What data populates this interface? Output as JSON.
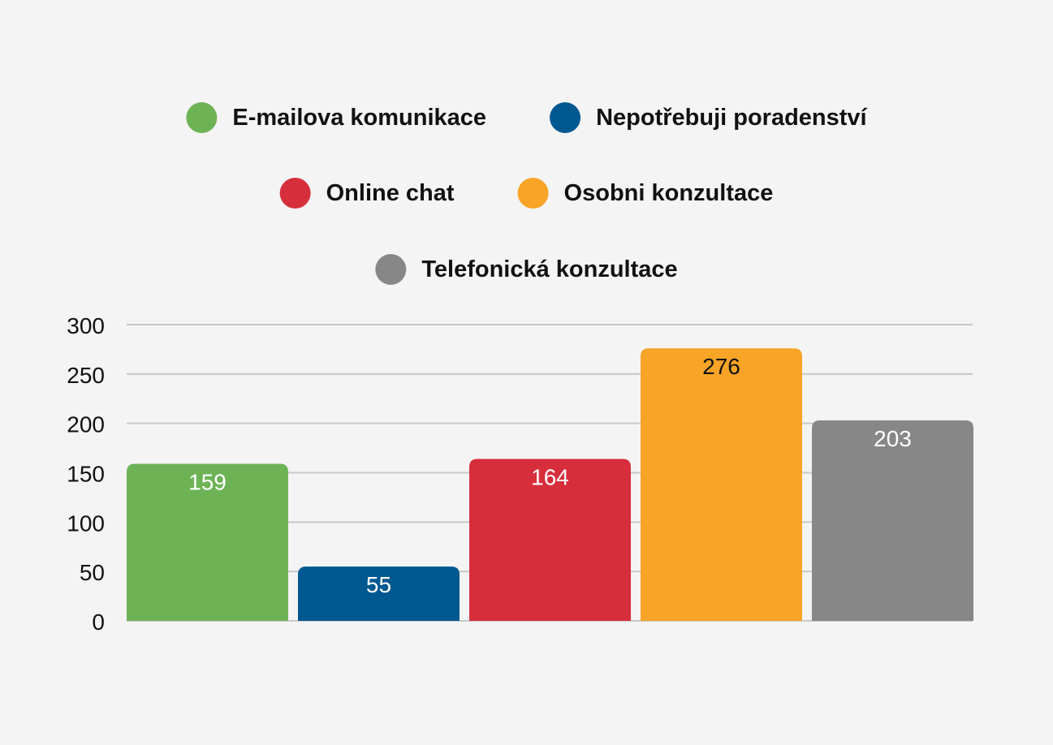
{
  "chart_data": {
    "type": "bar",
    "title": "",
    "xlabel": "",
    "ylabel": "",
    "ylim": [
      0,
      300
    ],
    "yticks": [
      0,
      50,
      100,
      150,
      200,
      250,
      300
    ],
    "grid": true,
    "legend_position": "top-center",
    "categories": [
      "E-mailova komunikace",
      "Nepotřebuji poradenství",
      "Online chat",
      "Osobni konzultace",
      "Telefonická konzultace"
    ],
    "values": [
      159,
      55,
      164,
      276,
      203
    ],
    "colors": [
      "#6db356",
      "#005891",
      "#d72e3b",
      "#f7a427",
      "#878787"
    ],
    "value_label_colors": [
      "#ffffff",
      "#ffffff",
      "#ffffff",
      "#111111",
      "#ffffff"
    ],
    "grid_color": "#c8c8c8",
    "text_color": "#111111"
  }
}
